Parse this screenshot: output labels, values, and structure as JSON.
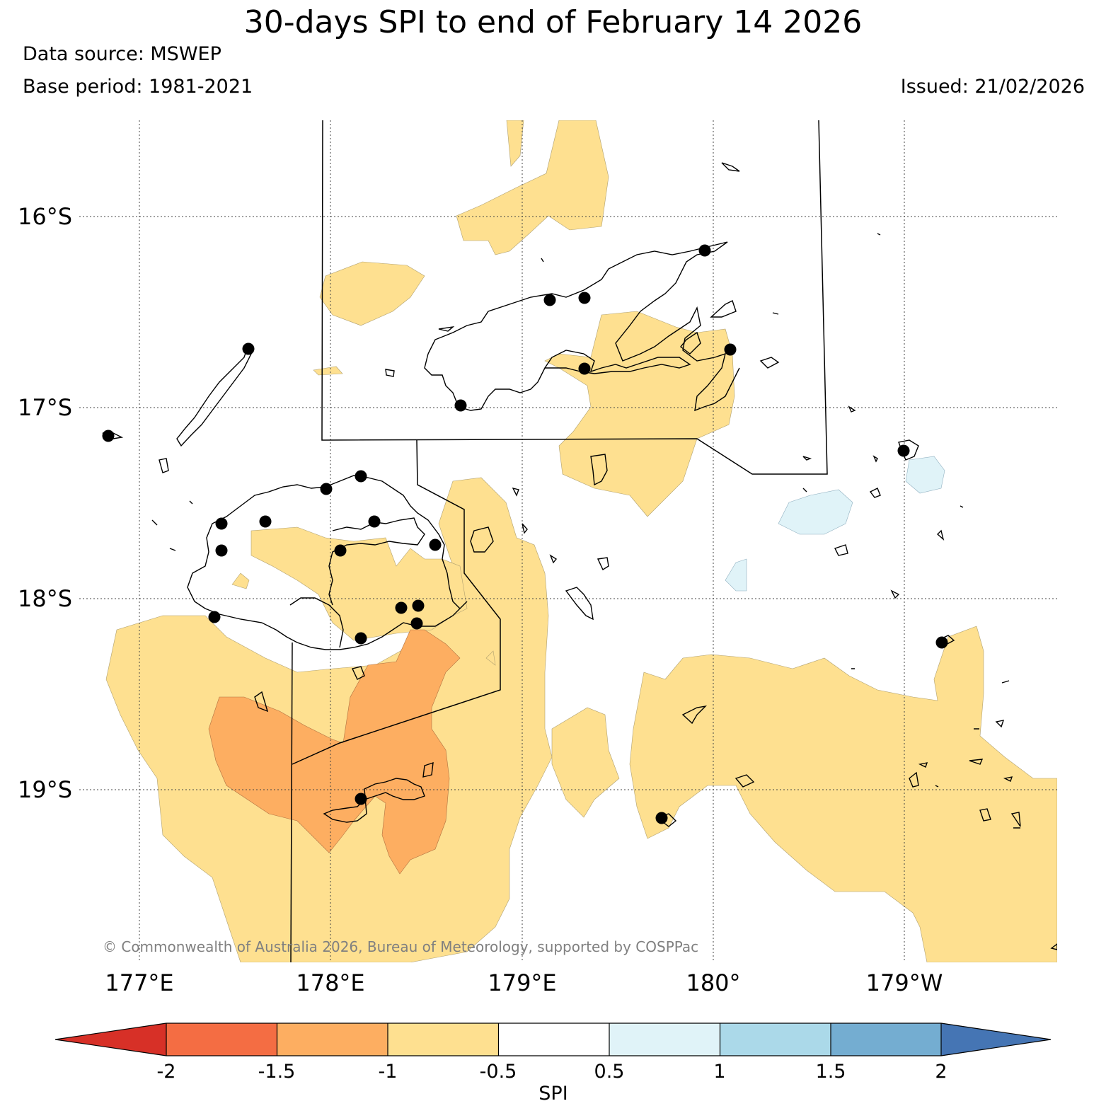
{
  "header": {
    "title": "30-days SPI to end of February 14 2026",
    "data_source": "Data source: MSWEP",
    "base_period": "Base period: 1981-2021",
    "issued": "Issued: 21/02/2026"
  },
  "map": {
    "lon_range": [
      176.6,
      -178.2
    ],
    "lat_range": [
      -15.5,
      -19.9
    ],
    "lon_ticks": [
      {
        "value": 177,
        "label": "177°E"
      },
      {
        "value": 178,
        "label": "178°E"
      },
      {
        "value": 179,
        "label": "179°E"
      },
      {
        "value": 180,
        "label": "180°"
      },
      {
        "value": -179,
        "label": "179°W"
      }
    ],
    "lat_ticks": [
      {
        "value": -16,
        "label": "16°S"
      },
      {
        "value": -17,
        "label": "17°S"
      },
      {
        "value": -18,
        "label": "18°S"
      },
      {
        "value": -19,
        "label": "19°S"
      }
    ],
    "gridlines": true,
    "copyright": "© Commonwealth of Australia 2026, Bureau of Meteorology, supported by COSPPac"
  },
  "colorbar": {
    "label": "SPI",
    "ticks": [
      "-2",
      "-1.5",
      "-1",
      "-0.5",
      "0.5",
      "1",
      "1.5",
      "2"
    ],
    "colors": {
      "below_-2": "#d73027",
      "-2_to_-1.5": "#f46d43",
      "-1.5_to_-1": "#fdae61",
      "-1_to_-0.5": "#fee090",
      "-0.5_to_0.5": "#ffffff",
      "0.5_to_1": "#e0f3f8",
      "1_to_1.5": "#abd9e9",
      "1.5_to_2": "#74add1",
      "above_2": "#4575b4"
    }
  }
}
